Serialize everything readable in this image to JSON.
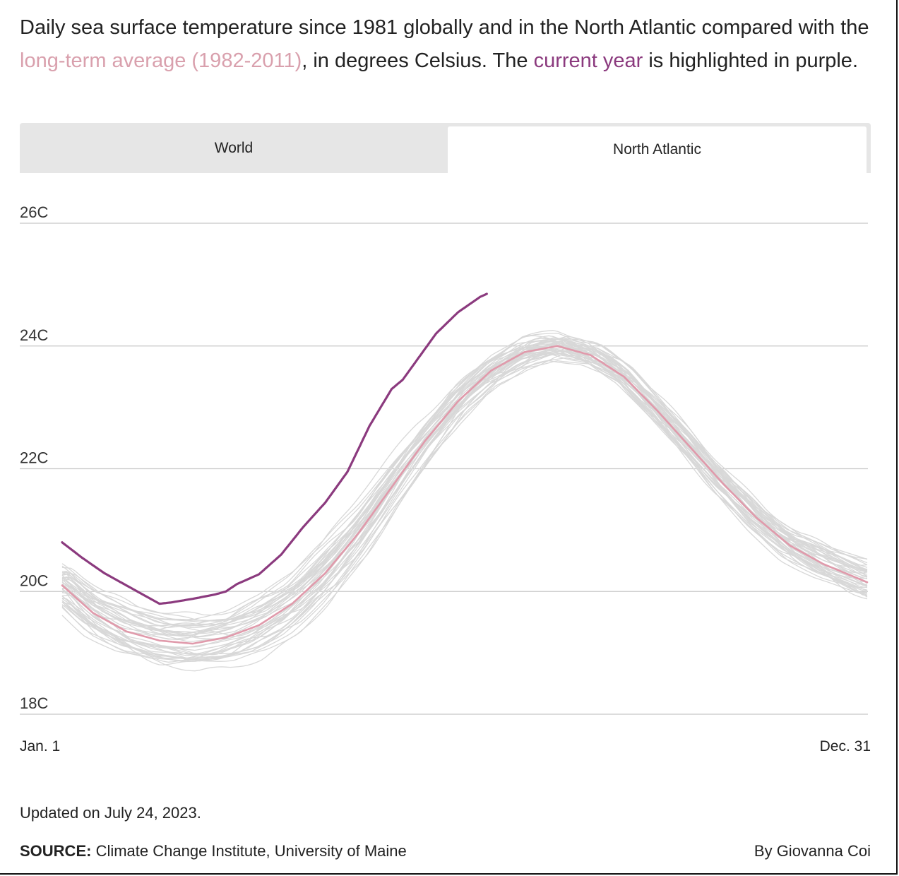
{
  "intro": {
    "part1": "Daily sea surface temperature since 1981 globally and in the North Atlantic compared with the ",
    "avg_label": "long-term average (1982-2011)",
    "part2": ", in degrees Celsius. The ",
    "current_label": "current year",
    "part3": " is highlighted in purple."
  },
  "tabs": {
    "world": "World",
    "north_atlantic": "North Atlantic",
    "active": "north_atlantic"
  },
  "colors": {
    "current_year": "#8b3a7e",
    "average": "#e09aab",
    "other_years": "#d8d8d8",
    "gridline": "#c8c8c8"
  },
  "chart_data": {
    "type": "line",
    "title": "",
    "xlabel": "",
    "ylabel": "",
    "ylim": [
      18,
      26
    ],
    "y_ticks": [
      {
        "value": 26,
        "label": "26C"
      },
      {
        "value": 24,
        "label": "24C"
      },
      {
        "value": 22,
        "label": "22C"
      },
      {
        "value": 20,
        "label": "20C"
      },
      {
        "value": 18,
        "label": "18C"
      }
    ],
    "x_labels": {
      "start": "Jan. 1",
      "end": "Dec. 31"
    },
    "xlim": [
      1,
      365
    ],
    "series": [
      {
        "name": "long-term average (1982-2011)",
        "role": "average",
        "x": [
          1,
          15,
          30,
          45,
          60,
          75,
          90,
          105,
          120,
          135,
          150,
          165,
          180,
          195,
          210,
          225,
          240,
          255,
          270,
          285,
          300,
          315,
          330,
          345,
          365
        ],
        "y": [
          20.1,
          19.65,
          19.35,
          19.2,
          19.15,
          19.25,
          19.45,
          19.8,
          20.3,
          20.95,
          21.7,
          22.45,
          23.1,
          23.6,
          23.9,
          24.0,
          23.85,
          23.5,
          22.95,
          22.35,
          21.75,
          21.2,
          20.75,
          20.45,
          20.15
        ]
      },
      {
        "name": "current year",
        "role": "current",
        "x": [
          1,
          10,
          20,
          30,
          40,
          45,
          50,
          60,
          70,
          75,
          80,
          90,
          100,
          110,
          120,
          130,
          140,
          150,
          155,
          160,
          165,
          170,
          180,
          190,
          193
        ],
        "y": [
          20.8,
          20.55,
          20.3,
          20.1,
          19.9,
          19.8,
          19.82,
          19.88,
          19.95,
          20.0,
          20.12,
          20.28,
          20.6,
          21.05,
          21.45,
          21.95,
          22.7,
          23.3,
          23.45,
          23.7,
          23.95,
          24.2,
          24.55,
          24.8,
          24.85
        ]
      }
    ],
    "other_years": {
      "count": 42,
      "description": ""
    }
  },
  "footer": {
    "updated": "Updated on July 24, 2023.",
    "source_label": "SOURCE:",
    "source_text": " Climate Change Institute, University of Maine",
    "byline": "By Giovanna Coi"
  }
}
